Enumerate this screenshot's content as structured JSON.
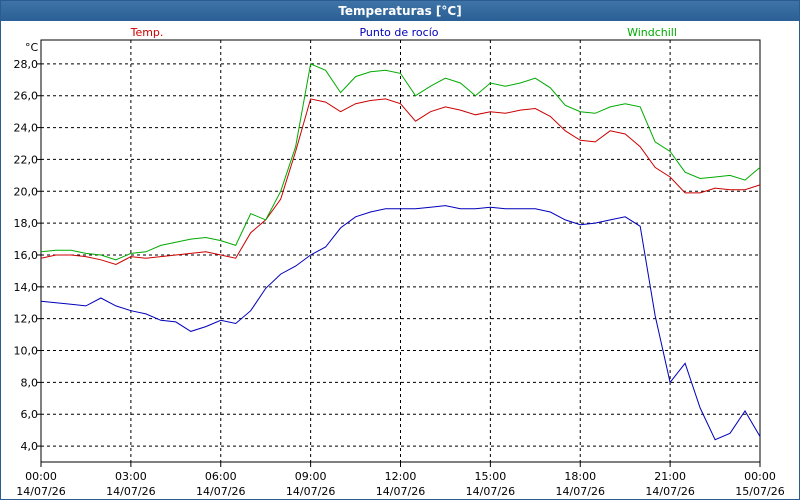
{
  "window": {
    "title": "Temperaturas [°C]"
  },
  "chart_data": {
    "type": "line",
    "title": "Temperaturas [°C]",
    "ylabel": "°C",
    "ylim": [
      3.0,
      29.5
    ],
    "yticks": [
      "4,0",
      "6,0",
      "8,0",
      "10,0",
      "12,0",
      "14,0",
      "16,0",
      "18,0",
      "20,0",
      "22,0",
      "24,0",
      "26,0",
      "28,0"
    ],
    "ytick_values": [
      4,
      6,
      8,
      10,
      12,
      14,
      16,
      18,
      20,
      22,
      24,
      26,
      28
    ],
    "x_range_hours": [
      0,
      24
    ],
    "xticks": [
      {
        "time": "00:00",
        "date": "14/07/26"
      },
      {
        "time": "03:00",
        "date": "14/07/26"
      },
      {
        "time": "06:00",
        "date": "14/07/26"
      },
      {
        "time": "09:00",
        "date": "14/07/26"
      },
      {
        "time": "12:00",
        "date": "14/07/26"
      },
      {
        "time": "15:00",
        "date": "14/07/26"
      },
      {
        "time": "18:00",
        "date": "14/07/26"
      },
      {
        "time": "21:00",
        "date": "14/07/26"
      },
      {
        "time": "00:00",
        "date": "15/07/26"
      }
    ],
    "grid": true,
    "legend_position": "top",
    "series": [
      {
        "name": "Temp.",
        "color": "#cc0000",
        "x": [
          0,
          0.5,
          1,
          1.5,
          2,
          2.5,
          3,
          3.5,
          4,
          4.5,
          5,
          5.5,
          6,
          6.5,
          7,
          7.5,
          8,
          8.5,
          9,
          9.5,
          10,
          10.5,
          11,
          11.5,
          12,
          12.5,
          13,
          13.5,
          14,
          14.5,
          15,
          15.5,
          16,
          16.5,
          17,
          17.5,
          18,
          18.5,
          19,
          19.5,
          20,
          20.5,
          21,
          21.5,
          22,
          22.5,
          23,
          23.5,
          24
        ],
        "values": [
          15.8,
          16.0,
          16.0,
          15.9,
          15.7,
          15.4,
          15.9,
          15.8,
          15.9,
          16.0,
          16.1,
          16.2,
          16.0,
          15.8,
          17.4,
          18.2,
          19.5,
          22.5,
          25.8,
          25.6,
          25.0,
          25.5,
          25.7,
          25.8,
          25.5,
          24.4,
          25.0,
          25.3,
          25.1,
          24.8,
          25.0,
          24.9,
          25.1,
          25.2,
          24.7,
          23.8,
          23.2,
          23.1,
          23.8,
          23.6,
          22.8,
          21.5,
          20.9,
          19.9,
          19.9,
          20.2,
          20.1,
          20.1,
          20.4
        ]
      },
      {
        "name": "Punto de rocío",
        "color": "#0000bb",
        "x": [
          0,
          0.5,
          1,
          1.5,
          2,
          2.5,
          3,
          3.5,
          4,
          4.5,
          5,
          5.5,
          6,
          6.5,
          7,
          7.5,
          8,
          8.5,
          9,
          9.5,
          10,
          10.5,
          11,
          11.5,
          12,
          12.5,
          13,
          13.5,
          14,
          14.5,
          15,
          15.5,
          16,
          16.5,
          17,
          17.5,
          18,
          18.5,
          19,
          19.5,
          20,
          20.5,
          21,
          21.5,
          22,
          22.5,
          23,
          23.5,
          24
        ],
        "values": [
          13.1,
          13.0,
          12.9,
          12.8,
          13.3,
          12.8,
          12.5,
          12.3,
          11.9,
          11.8,
          11.2,
          11.5,
          11.9,
          11.7,
          12.5,
          13.9,
          14.8,
          15.3,
          16.0,
          16.5,
          17.7,
          18.4,
          18.7,
          18.9,
          18.9,
          18.9,
          19.0,
          19.1,
          18.9,
          18.9,
          19.0,
          18.9,
          18.9,
          18.9,
          18.7,
          18.2,
          17.9,
          18.0,
          18.2,
          18.4,
          17.8,
          12.2,
          8.0,
          9.2,
          6.4,
          4.4,
          4.8,
          6.2,
          4.6
        ]
      },
      {
        "name": "Windchill",
        "color": "#00aa00",
        "x": [
          0,
          0.5,
          1,
          1.5,
          2,
          2.5,
          3,
          3.5,
          4,
          4.5,
          5,
          5.5,
          6,
          6.5,
          7,
          7.5,
          8,
          8.5,
          9,
          9.5,
          10,
          10.5,
          11,
          11.5,
          12,
          12.5,
          13,
          13.5,
          14,
          14.5,
          15,
          15.5,
          16,
          16.5,
          17,
          17.5,
          18,
          18.5,
          19,
          19.5,
          20,
          20.5,
          21,
          21.5,
          22,
          22.5,
          23,
          23.5,
          24
        ],
        "values": [
          16.2,
          16.3,
          16.3,
          16.1,
          16.0,
          15.7,
          16.1,
          16.2,
          16.6,
          16.8,
          17.0,
          17.1,
          16.9,
          16.6,
          18.6,
          18.2,
          20.0,
          22.8,
          28.0,
          27.6,
          26.2,
          27.2,
          27.5,
          27.6,
          27.4,
          26.0,
          26.6,
          27.1,
          26.8,
          26.0,
          26.8,
          26.6,
          26.8,
          27.1,
          26.5,
          25.4,
          25.0,
          24.9,
          25.3,
          25.5,
          25.3,
          23.1,
          22.5,
          21.2,
          20.8,
          20.9,
          21.0,
          20.7,
          21.5
        ]
      }
    ]
  }
}
